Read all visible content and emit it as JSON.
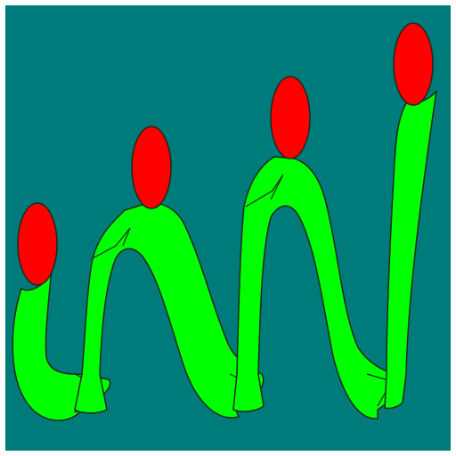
{
  "colors": {
    "background": "#007b7b",
    "body_fill": "#00ff00",
    "head_fill": "#ff0000",
    "outline": "#1a2a1a",
    "frame": "#ffffff"
  },
  "figures": [
    {
      "name": "figure-1",
      "head": "red-circle",
      "body": "green-ribbon"
    },
    {
      "name": "figure-2",
      "head": "red-circle",
      "body": "green-ribbon"
    },
    {
      "name": "figure-3",
      "head": "red-circle",
      "body": "green-ribbon"
    },
    {
      "name": "figure-4",
      "head": "red-circle",
      "body": "green-ribbon"
    }
  ]
}
